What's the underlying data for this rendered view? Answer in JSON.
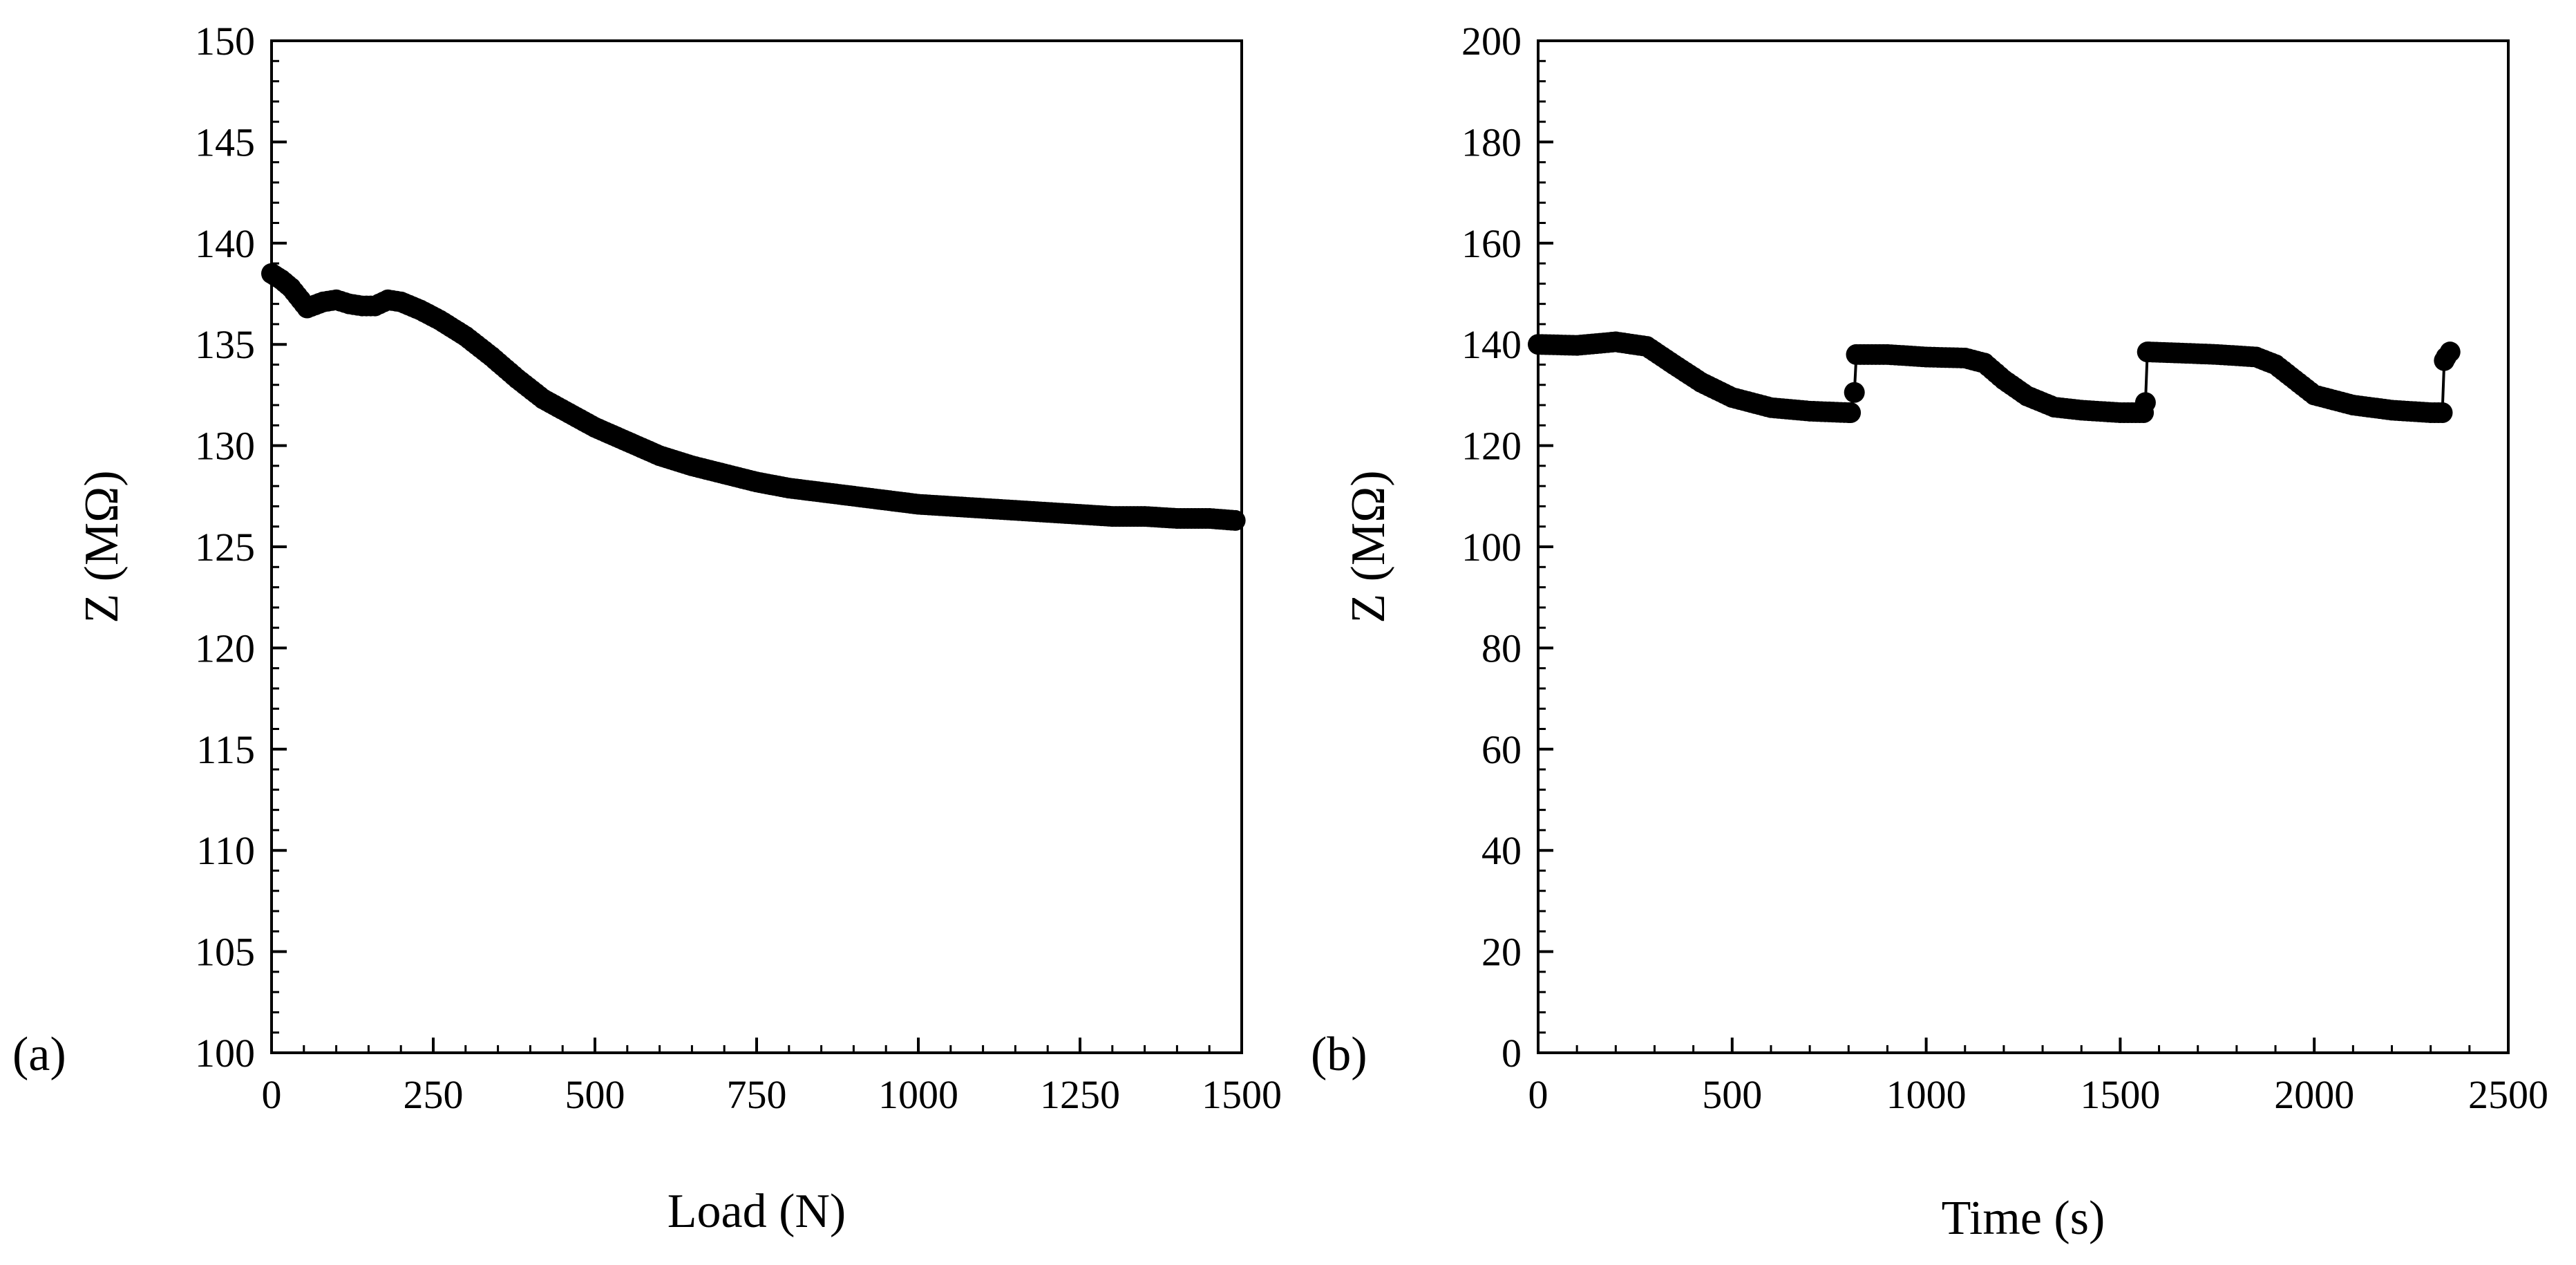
{
  "chart_data": [
    {
      "type": "scatter",
      "panel_label": "(a)",
      "title": "",
      "xlabel": "Load (N)",
      "ylabel": "Z (MΩ)",
      "xlim": [
        0,
        1500
      ],
      "ylim": [
        100,
        150
      ],
      "xticks": [
        0,
        250,
        500,
        750,
        1000,
        1250,
        1500
      ],
      "yticks": [
        100,
        105,
        110,
        115,
        120,
        125,
        130,
        135,
        140,
        145,
        150
      ],
      "xtick_labels": [
        "0",
        "250",
        "500",
        "750",
        "1000",
        "1250",
        "1500"
      ],
      "ytick_labels": [
        "100",
        "105",
        "110",
        "115",
        "120",
        "125",
        "130",
        "135",
        "140",
        "145",
        "150"
      ],
      "grid": false,
      "series": [
        {
          "name": "Z",
          "x": [
            0,
            15,
            30,
            45,
            55,
            80,
            100,
            120,
            140,
            160,
            180,
            200,
            230,
            260,
            300,
            340,
            380,
            420,
            460,
            500,
            550,
            600,
            650,
            700,
            750,
            800,
            850,
            900,
            950,
            1000,
            1050,
            1100,
            1150,
            1200,
            1250,
            1300,
            1350,
            1400,
            1450,
            1490
          ],
          "y": [
            138.5,
            138.2,
            137.8,
            137.2,
            136.8,
            137.1,
            137.2,
            137.0,
            136.9,
            136.9,
            137.2,
            137.1,
            136.7,
            136.2,
            135.4,
            134.4,
            133.3,
            132.3,
            131.6,
            130.9,
            130.2,
            129.5,
            129.0,
            128.6,
            128.2,
            127.9,
            127.7,
            127.5,
            127.3,
            127.1,
            127.0,
            126.9,
            126.8,
            126.7,
            126.6,
            126.5,
            126.5,
            126.4,
            126.4,
            126.3
          ]
        }
      ]
    },
    {
      "type": "scatter",
      "panel_label": "(b)",
      "title": "",
      "xlabel": "Time (s)",
      "ylabel": "Z (MΩ)",
      "xlim": [
        0,
        2500
      ],
      "ylim": [
        0,
        200
      ],
      "xticks": [
        0,
        500,
        1000,
        1500,
        2000,
        2500
      ],
      "yticks": [
        0,
        20,
        40,
        60,
        80,
        100,
        120,
        140,
        160,
        180,
        200
      ],
      "xtick_labels": [
        "0",
        "500",
        "1000",
        "1500",
        "2000",
        "2500"
      ],
      "ytick_labels": [
        "0",
        "20",
        "40",
        "60",
        "80",
        "100",
        "120",
        "140",
        "160",
        "180",
        "200"
      ],
      "grid": false,
      "series": [
        {
          "name": "Z",
          "x": [
            0,
            100,
            200,
            280,
            350,
            420,
            500,
            600,
            700,
            800,
            805,
            815,
            820,
            900,
            1000,
            1100,
            1150,
            1200,
            1260,
            1330,
            1400,
            1500,
            1560,
            1565,
            1570,
            1575,
            1650,
            1750,
            1850,
            1900,
            1950,
            2000,
            2100,
            2200,
            2300,
            2330,
            2335,
            2340,
            2350
          ],
          "y": [
            140,
            139.8,
            140.5,
            139.6,
            136,
            132.5,
            129.5,
            127.5,
            126.8,
            126.5,
            126.5,
            130.5,
            138,
            138,
            137.5,
            137.3,
            136.3,
            133,
            129.8,
            127.6,
            127,
            126.5,
            126.5,
            128.5,
            138.5,
            138.5,
            138.3,
            138,
            137.5,
            136,
            133,
            130,
            128,
            127,
            126.5,
            126.5,
            136.8,
            137.5,
            138.5
          ]
        }
      ]
    }
  ]
}
